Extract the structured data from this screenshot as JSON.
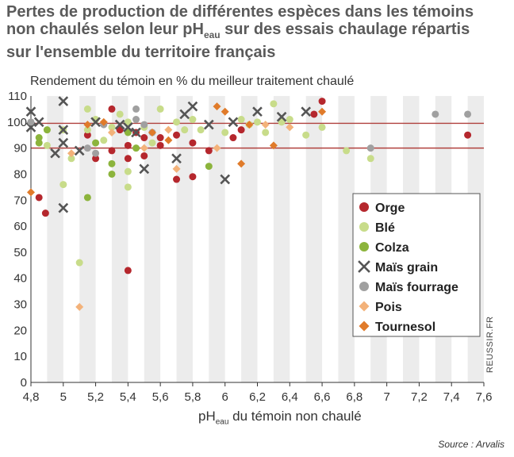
{
  "title_line1": "Pertes de production de différentes espèces dans les témoins",
  "title_line2_a": "non chaulés selon leur pH",
  "title_line2_sub": "eau",
  "title_line2_b": " sur des essais chaulage répartis",
  "title_line3": "sur l'ensemble du territoire français",
  "y_axis_label": "Rendement du témoin en % du meilleur traitement chaulé",
  "x_axis_label_a": "pH",
  "x_axis_label_sub": "eau",
  "x_axis_label_b": " du témoin non chaulé",
  "source": "Source : Arvalis",
  "watermark": "REUSSIR.FR",
  "chart_data": {
    "type": "scatter",
    "xlim": [
      4.8,
      7.6
    ],
    "ylim": [
      0,
      110
    ],
    "x_ticks": [
      "4,8",
      "5",
      "5,2",
      "5,4",
      "5,6",
      "5,8",
      "6",
      "6,2",
      "6,4",
      "6,6",
      "6,8",
      "7",
      "7,2",
      "7,4",
      "7,6"
    ],
    "y_ticks": [
      "0",
      "10",
      "20",
      "30",
      "40",
      "50",
      "60",
      "70",
      "80",
      "90",
      "100",
      "110"
    ],
    "reference_lines_y": [
      90,
      99.5
    ],
    "reference_line_color": "#b0413e",
    "background_bands": "alternating grey vertical bands every 0.1 pH",
    "legend_position": "center-right",
    "series": [
      {
        "name": "Orge",
        "marker": "circle",
        "color": "#b5272d",
        "points": [
          [
            4.85,
            71
          ],
          [
            4.89,
            65
          ],
          [
            5.15,
            95
          ],
          [
            5.2,
            86
          ],
          [
            5.3,
            105
          ],
          [
            5.3,
            89
          ],
          [
            5.35,
            97
          ],
          [
            5.4,
            91
          ],
          [
            5.4,
            86
          ],
          [
            5.45,
            96
          ],
          [
            5.5,
            87
          ],
          [
            5.5,
            94
          ],
          [
            5.6,
            91
          ],
          [
            5.6,
            94
          ],
          [
            5.7,
            95
          ],
          [
            5.7,
            78
          ],
          [
            5.8,
            92
          ],
          [
            5.8,
            79
          ],
          [
            5.9,
            89
          ],
          [
            6.05,
            94
          ],
          [
            6.1,
            97
          ],
          [
            6.55,
            103
          ],
          [
            6.6,
            108
          ],
          [
            7.5,
            95
          ],
          [
            5.4,
            43
          ]
        ]
      },
      {
        "name": "Blé",
        "marker": "circle",
        "color": "#c8dc8a",
        "points": [
          [
            4.9,
            91
          ],
          [
            5.0,
            97
          ],
          [
            5.0,
            76
          ],
          [
            5.05,
            86
          ],
          [
            5.1,
            46
          ],
          [
            5.15,
            105
          ],
          [
            5.15,
            97
          ],
          [
            5.2,
            101
          ],
          [
            5.25,
            93
          ],
          [
            5.3,
            98
          ],
          [
            5.35,
            103
          ],
          [
            5.4,
            100
          ],
          [
            5.4,
            81
          ],
          [
            5.4,
            75
          ],
          [
            5.5,
            98
          ],
          [
            5.55,
            92
          ],
          [
            5.6,
            105
          ],
          [
            5.7,
            100
          ],
          [
            5.75,
            97
          ],
          [
            5.8,
            101
          ],
          [
            5.85,
            97
          ],
          [
            6.0,
            96
          ],
          [
            6.1,
            101
          ],
          [
            6.15,
            99
          ],
          [
            6.2,
            100
          ],
          [
            6.25,
            96
          ],
          [
            6.3,
            107
          ],
          [
            6.35,
            100
          ],
          [
            6.4,
            101
          ],
          [
            6.5,
            95
          ],
          [
            6.6,
            98
          ],
          [
            6.75,
            89
          ],
          [
            6.9,
            86
          ]
        ]
      },
      {
        "name": "Colza",
        "marker": "circle",
        "color": "#8cb43c",
        "points": [
          [
            4.85,
            94
          ],
          [
            4.85,
            92
          ],
          [
            4.9,
            97
          ],
          [
            5.15,
            71
          ],
          [
            5.2,
            92
          ],
          [
            5.3,
            80
          ],
          [
            5.3,
            84
          ],
          [
            5.4,
            96
          ],
          [
            5.45,
            90
          ],
          [
            5.9,
            83
          ]
        ]
      },
      {
        "name": "Maïs grain",
        "marker": "cross",
        "color": "#555555",
        "points": [
          [
            4.8,
            104
          ],
          [
            4.8,
            98
          ],
          [
            4.85,
            100
          ],
          [
            4.95,
            88
          ],
          [
            5.0,
            108
          ],
          [
            5.0,
            92
          ],
          [
            5.0,
            67
          ],
          [
            5.0,
            97
          ],
          [
            5.1,
            89
          ],
          [
            5.2,
            100
          ],
          [
            5.35,
            99
          ],
          [
            5.4,
            98
          ],
          [
            5.45,
            96
          ],
          [
            5.5,
            82
          ],
          [
            5.7,
            86
          ],
          [
            5.75,
            103
          ],
          [
            5.8,
            106
          ],
          [
            5.9,
            99
          ],
          [
            6.0,
            78
          ],
          [
            6.05,
            100
          ],
          [
            6.2,
            104
          ],
          [
            6.35,
            102
          ],
          [
            6.5,
            104
          ]
        ]
      },
      {
        "name": "Maïs fourrage",
        "marker": "circle",
        "color": "#a0a0a0",
        "points": [
          [
            4.8,
            100
          ],
          [
            5.15,
            90
          ],
          [
            5.2,
            88
          ],
          [
            5.25,
            99
          ],
          [
            5.45,
            105
          ],
          [
            5.45,
            101
          ],
          [
            5.5,
            99
          ],
          [
            5.55,
            96
          ],
          [
            6.9,
            90
          ],
          [
            7.3,
            103
          ],
          [
            7.5,
            103
          ]
        ]
      },
      {
        "name": "Pois",
        "marker": "diamond",
        "color": "#f3b27a",
        "points": [
          [
            5.05,
            88
          ],
          [
            5.1,
            29
          ],
          [
            5.3,
            96
          ],
          [
            5.5,
            90
          ],
          [
            5.65,
            97
          ],
          [
            5.7,
            82
          ],
          [
            5.95,
            90
          ],
          [
            6.25,
            99
          ],
          [
            6.4,
            98
          ]
        ]
      },
      {
        "name": "Tournesol",
        "marker": "diamond",
        "color": "#e07b2a",
        "points": [
          [
            4.8,
            73
          ],
          [
            5.15,
            99
          ],
          [
            5.25,
            100
          ],
          [
            5.55,
            96
          ],
          [
            5.65,
            93
          ],
          [
            5.95,
            106
          ],
          [
            6.0,
            104
          ],
          [
            6.1,
            84
          ],
          [
            6.15,
            99
          ],
          [
            6.3,
            91
          ],
          [
            6.6,
            104
          ]
        ]
      }
    ]
  }
}
